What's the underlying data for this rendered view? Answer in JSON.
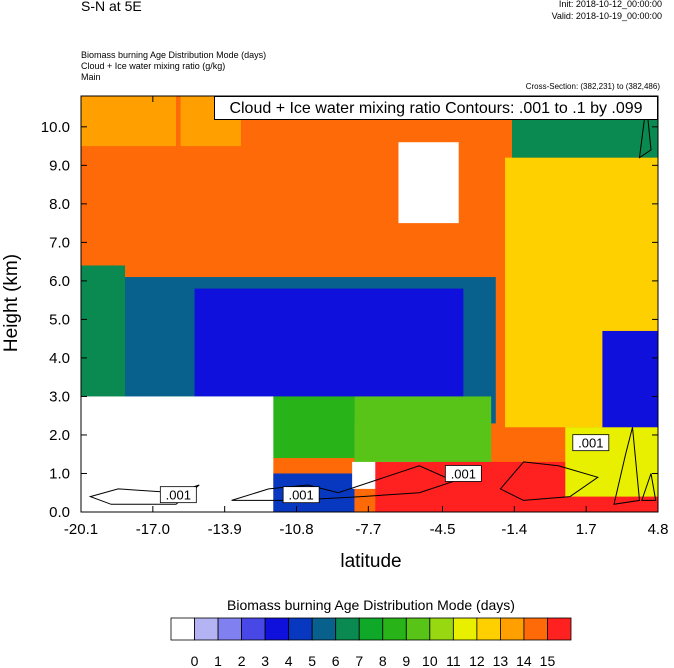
{
  "header": {
    "title": "S-N at 5E",
    "init": "Init: 2018-10-12_00:00:00",
    "valid": "Valid: 2018-10-19_00:00:00",
    "fields": [
      "Biomass burning Age Distribution Mode   (days)",
      "Cloud + Ice water mixing ratio   (g/kg)",
      "Main"
    ],
    "cross_section": "Cross-Section: (382,231) to (382,486)"
  },
  "contour_label": "Cloud + Ice water mixing ratio Contours: .001 to .1 by .099",
  "contour_tags": [
    ".001",
    ".001",
    ".001",
    ".001"
  ],
  "chart_data": {
    "type": "heatmap",
    "xlabel": "latitude",
    "ylabel": "Height (km)",
    "xlim": [
      -20.1,
      4.8
    ],
    "ylim": [
      0.0,
      10.8
    ],
    "x_ticks": [
      "-20.1",
      "-17.0",
      "-13.9",
      "-10.8",
      "-7.7",
      "-4.5",
      "-1.4",
      "1.7",
      "4.8"
    ],
    "x_tick_values": [
      -20.1,
      -17.0,
      -13.9,
      -10.8,
      -7.7,
      -4.5,
      -1.4,
      1.7,
      4.8
    ],
    "y_ticks": [
      "0.0",
      "1.0",
      "2.0",
      "3.0",
      "4.0",
      "5.0",
      "6.0",
      "7.0",
      "8.0",
      "9.0",
      "10.0"
    ],
    "y_tick_values": [
      0,
      1,
      2,
      3,
      4,
      5,
      6,
      7,
      8,
      9,
      10
    ],
    "colorbar": {
      "title": "Biomass burning Age Distribution Mode  (days)",
      "labels": [
        "0",
        "1",
        "2",
        "3",
        "4",
        "5",
        "6",
        "7",
        "8",
        "9",
        "10",
        "11",
        "12",
        "13",
        "14",
        "15"
      ],
      "colors": [
        "#ffffff",
        "#b4b4f5",
        "#8080f0",
        "#4848e6",
        "#1010dc",
        "#0838c0",
        "#08608c",
        "#0a8a50",
        "#10a828",
        "#28b418",
        "#58c418",
        "#98d810",
        "#e8f000",
        "#ffd000",
        "#ffa000",
        "#ff6a08",
        "#ff2020"
      ]
    },
    "regions": [
      {
        "color": "#ff6a08",
        "x": [
          -20.1,
          4.8
        ],
        "y": [
          0.0,
          10.8
        ]
      },
      {
        "color": "#ffa000",
        "x": [
          -20.1,
          -16.0
        ],
        "y": [
          9.5,
          10.8
        ]
      },
      {
        "color": "#ffa000",
        "x": [
          -15.8,
          -13.2
        ],
        "y": [
          9.5,
          10.8
        ]
      },
      {
        "color": "#ffd000",
        "x": [
          -1.8,
          4.8
        ],
        "y": [
          2.2,
          9.2
        ]
      },
      {
        "color": "#0a8a50",
        "x": [
          -1.5,
          4.8
        ],
        "y": [
          9.2,
          10.8
        ]
      },
      {
        "color": "#08608c",
        "x": [
          -20.1,
          -2.2
        ],
        "y": [
          2.3,
          6.1
        ]
      },
      {
        "color": "#0a8a50",
        "x": [
          -20.1,
          -18.2
        ],
        "y": [
          2.8,
          6.4
        ]
      },
      {
        "color": "#1010dc",
        "x": [
          -15.2,
          -3.6
        ],
        "y": [
          3.0,
          5.8
        ]
      },
      {
        "color": "#58c418",
        "x": [
          -8.3,
          -2.4
        ],
        "y": [
          1.0,
          3.0
        ]
      },
      {
        "color": "#28b418",
        "x": [
          -16.8,
          -8.3
        ],
        "y": [
          1.4,
          3.0
        ]
      },
      {
        "color": "#ffffff",
        "x": [
          -20.1,
          -11.8
        ],
        "y": [
          0.0,
          3.0
        ]
      },
      {
        "color": "#ffffff",
        "x": [
          -6.4,
          -3.8
        ],
        "y": [
          7.5,
          9.6
        ]
      },
      {
        "color": "#0838c0",
        "x": [
          -11.8,
          -8.3
        ],
        "y": [
          0.0,
          1.0
        ]
      },
      {
        "color": "#ffffff",
        "x": [
          -8.4,
          -5.0
        ],
        "y": [
          0.6,
          1.3
        ]
      },
      {
        "color": "#ff2020",
        "x": [
          -7.4,
          4.8
        ],
        "y": [
          0.0,
          1.3
        ]
      },
      {
        "color": "#e8f000",
        "x": [
          0.8,
          4.8
        ],
        "y": [
          0.4,
          2.2
        ]
      },
      {
        "color": "#1010dc",
        "x": [
          2.4,
          4.8
        ],
        "y": [
          2.2,
          4.7
        ]
      }
    ]
  }
}
